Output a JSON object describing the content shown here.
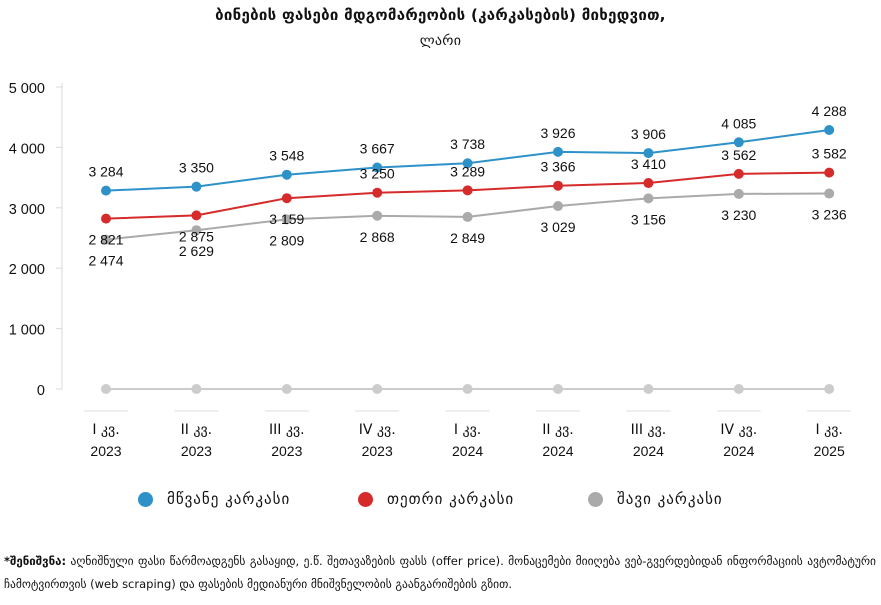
{
  "title_line1": "ბინების ფასები მდგომარეობის (კარკასების) მიხედვით,",
  "title_line2": "ლარი",
  "legend": {
    "green": "მწვანე კარკასი",
    "white": "თეთრი კარკასი",
    "black": "შავი კარკასი"
  },
  "footnote": {
    "label": "*შენიშვნა:",
    "text": "აღნიშნული ფასი წარმოადგენს გასაყიდ, ე.წ. შეთავაზების ფასს (offer price). მონაცემები მიიღება ვებ-გვერდებიდან ინფორმაციის ავტომატური ჩამოტვირთვის (web scraping) და ფასების მედიანური მნიშვნელობის გაანგარიშების გზით."
  },
  "chart_data": {
    "type": "line",
    "categories": [
      [
        "I კვ.",
        "2023"
      ],
      [
        "II კვ.",
        "2023"
      ],
      [
        "III კვ.",
        "2023"
      ],
      [
        "IV კვ.",
        "2023"
      ],
      [
        "I კვ.",
        "2024"
      ],
      [
        "II კვ.",
        "2024"
      ],
      [
        "III კვ.",
        "2024"
      ],
      [
        "IV კვ.",
        "2024"
      ],
      [
        "I კვ.",
        "2025"
      ]
    ],
    "ylim": [
      0,
      5000
    ],
    "yticks": [
      0,
      1000,
      2000,
      3000,
      4000,
      5000
    ],
    "ytick_labels": [
      "0",
      "1 000",
      "2 000",
      "3 000",
      "4 000",
      "5 000"
    ],
    "grid": false,
    "legend_position": "bottom",
    "series": [
      {
        "name": "მწვანე კარკასი",
        "color": "#2e92c9",
        "values": [
          3284,
          3350,
          3548,
          3667,
          3738,
          3926,
          3906,
          4085,
          4288
        ],
        "labels": [
          "3 284",
          "3 350",
          "3 548",
          "3 667",
          "3 738",
          "3 926",
          "3 906",
          "4 085",
          "4 288"
        ],
        "label_position": "above"
      },
      {
        "name": "თეთრი კარკასი",
        "color": "#d62b2b",
        "values": [
          2821,
          2875,
          3159,
          3250,
          3289,
          3366,
          3410,
          3562,
          3582
        ],
        "labels": [
          "2 821",
          "2 875",
          "3 159",
          "3 250",
          "3 289",
          "3 366",
          "3 410",
          "3 562",
          "3 582"
        ],
        "label_position": "mixed"
      },
      {
        "name": "შავი კარკასი",
        "color": "#aaaaaa",
        "values": [
          2474,
          2629,
          2809,
          2868,
          2849,
          3029,
          3156,
          3230,
          3236
        ],
        "labels": [
          "2 474",
          "2 629",
          "2 809",
          "2 868",
          "2 849",
          "3 029",
          "3 156",
          "3 230",
          "3 236"
        ],
        "label_position": "below"
      },
      {
        "name": "",
        "color": "#cccccc",
        "values": [
          0,
          0,
          0,
          0,
          0,
          0,
          0,
          0,
          0
        ],
        "labels": [],
        "label_position": "none"
      }
    ]
  }
}
